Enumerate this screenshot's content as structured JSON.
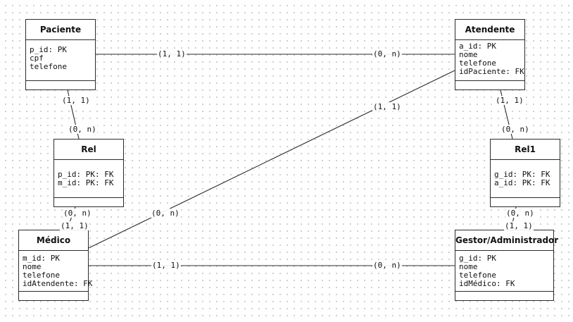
{
  "entities": {
    "paciente": {
      "name": "Paciente",
      "attributes": [
        "p_id: PK",
        "cpf",
        "telefone"
      ]
    },
    "atendente": {
      "name": "Atendente",
      "attributes": [
        "a_id: PK",
        "nome",
        "telefone",
        "idPaciente: FK"
      ]
    },
    "rel": {
      "name": "Rel",
      "attributes": [
        "p_id: PK: FK",
        "m_id: PK: FK"
      ]
    },
    "rel1": {
      "name": "Rel1",
      "attributes": [
        "g_id: PK: FK",
        "a_id: PK: FK"
      ]
    },
    "medico": {
      "name": "Médico",
      "attributes": [
        "m_id: PK",
        "nome",
        "telefone",
        "idAtendente: FK"
      ]
    },
    "gestor": {
      "name": "Gestor/Administrador",
      "attributes": [
        "g_id: PK",
        "nome",
        "telefone",
        "idMédico: FK"
      ]
    }
  },
  "cardinalities": {
    "paciente_atendente_a": "(1, 1)",
    "paciente_atendente_b": "(0, n)",
    "paciente_rel_a": "(1, 1)",
    "paciente_rel_b": "(0, n)",
    "atendente_rel1_a": "(1, 1)",
    "atendente_rel1_b": "(0, n)",
    "atendente_medico_a": "(1, 1)",
    "atendente_medico_b": "(0, n)",
    "rel_medico_a": "(0, n)",
    "rel_medico_b": "(1, 1)",
    "rel1_gestor_a": "(0, n)",
    "rel1_gestor_b": "(1, 1)",
    "medico_gestor_a": "(1, 1)",
    "medico_gestor_b": "(0, n)"
  },
  "colors": {
    "line": "#2b2b2b",
    "grid_dot": "#c4c4c4",
    "background": "#ffffff"
  }
}
